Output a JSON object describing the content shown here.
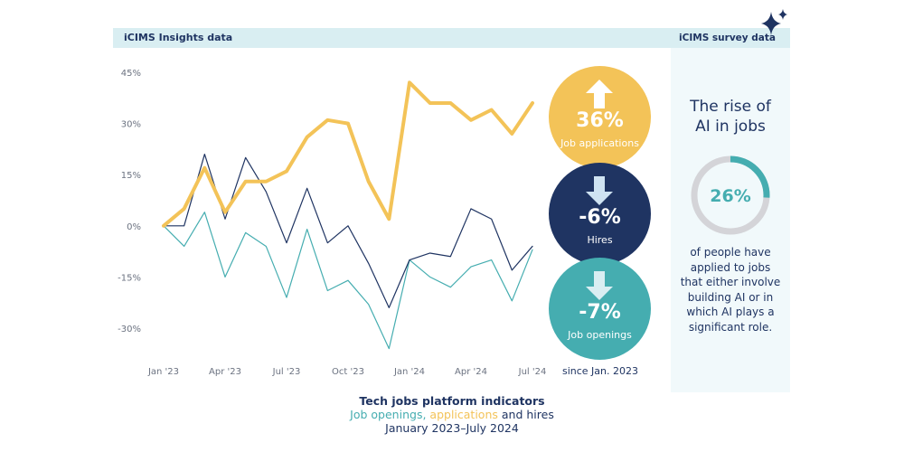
{
  "header": {
    "left_label": "iCIMS Insights data",
    "right_label": "iCIMS survey data"
  },
  "colors": {
    "applications": "#f3c358",
    "hires": "#1f3462",
    "openings": "#45adb0",
    "header_bg": "#d9eef2",
    "panel_bg": "#f1f9fb"
  },
  "chart_data": {
    "type": "line",
    "x": [
      "Jan '23",
      "Feb '23",
      "Mar '23",
      "Apr '23",
      "May '23",
      "Jun '23",
      "Jul '23",
      "Aug '23",
      "Sep '23",
      "Oct '23",
      "Nov '23",
      "Dec '23",
      "Jan '24",
      "Feb '24",
      "Mar '24",
      "Apr '24",
      "May '24",
      "Jun '24",
      "Jul '24"
    ],
    "x_tick_labels": [
      "Jan '23",
      "Apr '23",
      "Jul '23",
      "Oct '23",
      "Jan '24",
      "Apr '24",
      "Jul '24"
    ],
    "y_ticks": [
      "45%",
      "30%",
      "15%",
      "0%",
      "-15%",
      "-30%"
    ],
    "ylim": [
      -40,
      45
    ],
    "series": [
      {
        "name": "Job openings",
        "color": "#45adb0",
        "width": 1.2,
        "values": [
          0,
          -6,
          4,
          -15,
          -2,
          -6,
          -21,
          -1,
          -19,
          -16,
          -23,
          -36,
          -10,
          -15,
          -18,
          -12,
          -10,
          -22,
          -7
        ]
      },
      {
        "name": "Hires",
        "color": "#1f3462",
        "width": 1.2,
        "values": [
          0,
          0,
          21,
          2,
          20,
          10,
          -5,
          11,
          -5,
          0,
          -11,
          -24,
          -10,
          -8,
          -9,
          5,
          2,
          -13,
          -6
        ]
      },
      {
        "name": "Job applications",
        "color": "#f3c358",
        "width": 4,
        "values": [
          0,
          5,
          17,
          4,
          13,
          13,
          16,
          26,
          31,
          30,
          13,
          2,
          42,
          36,
          36,
          31,
          34,
          27,
          36
        ]
      }
    ],
    "indicators": [
      {
        "value": "36%",
        "label": "Job applications",
        "direction": "up",
        "color": "#f3c358"
      },
      {
        "value": "-6%",
        "label": "Hires",
        "direction": "down",
        "color": "#1f3462"
      },
      {
        "value": "-7%",
        "label": "Job openings",
        "direction": "down",
        "color": "#45adb0"
      }
    ],
    "since_label": "since Jan. 2023",
    "caption": {
      "title": "Tech jobs platform indicators",
      "line2_part1": "Job openings,",
      "line2_part2": "applications",
      "line2_part3": "and hires",
      "line3": "January 2023–July 2024"
    }
  },
  "survey": {
    "title_line1": "The rise of",
    "title_line2": "AI in jobs",
    "donut_value": 26,
    "donut_label": "26%",
    "text": "of people have applied to jobs that either involve building AI or in which AI plays a significant role."
  }
}
